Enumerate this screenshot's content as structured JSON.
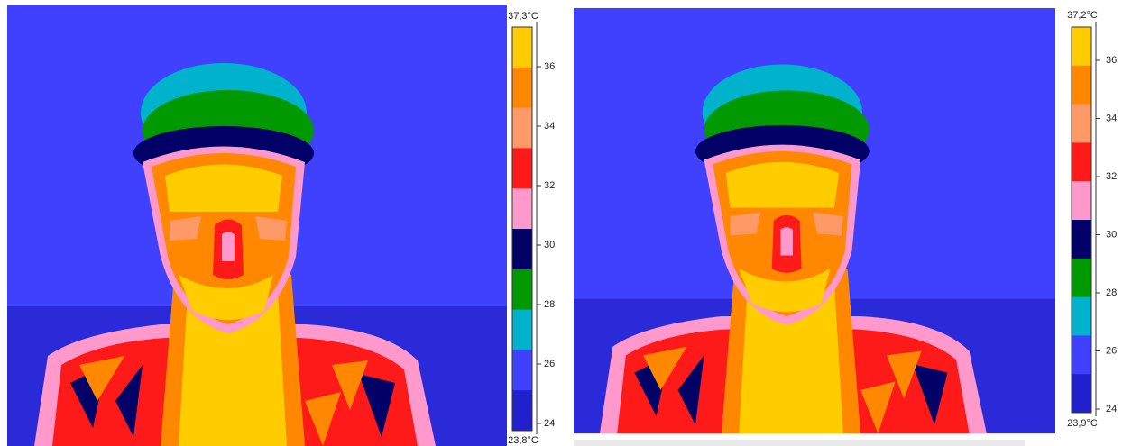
{
  "panels": [
    {
      "scale": {
        "max_label": "37,3°C",
        "min_label": "23,8°C",
        "ticks": [
          24,
          26,
          28,
          30,
          32,
          34,
          36
        ],
        "colors": [
          "#ffcc00",
          "#ff8800",
          "#ff9966",
          "#ff1a1a",
          "#ff99cc",
          "#000066",
          "#009900",
          "#00b2cc",
          "#4040ff",
          "#2020cc"
        ]
      }
    },
    {
      "scale": {
        "max_label": "37,2°C",
        "min_label": "23,9°C",
        "ticks": [
          24,
          26,
          28,
          30,
          32,
          34,
          36
        ],
        "colors": [
          "#ffcc00",
          "#ff8800",
          "#ff9966",
          "#ff1a1a",
          "#ff99cc",
          "#000066",
          "#009900",
          "#00b2cc",
          "#4040ff",
          "#2020cc"
        ]
      }
    }
  ]
}
